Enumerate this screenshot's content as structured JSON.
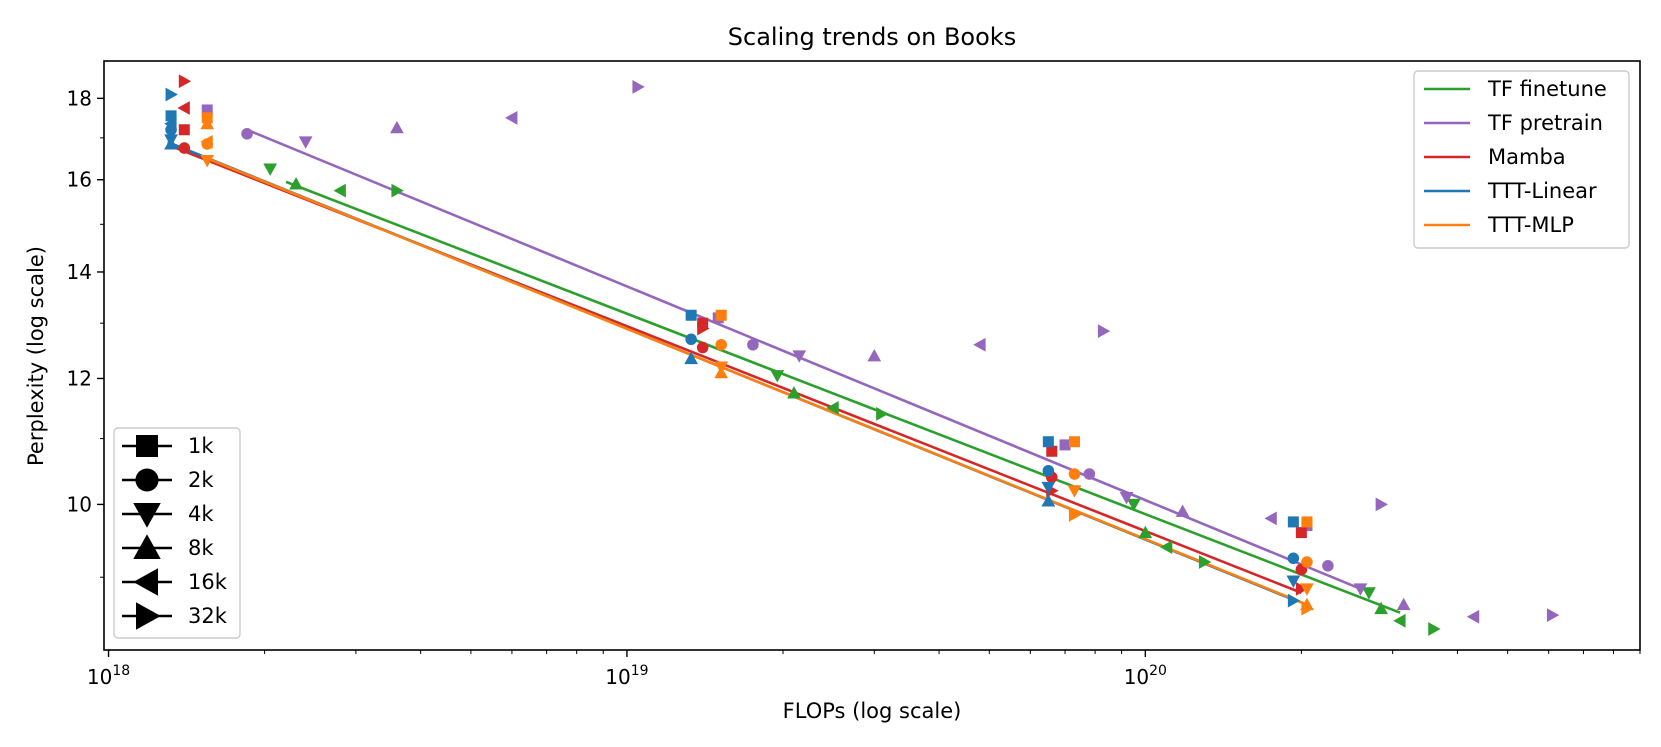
{
  "chart_data": {
    "type": "scatter",
    "title": "Scaling trends on Books",
    "xlabel": "FLOPs (log scale)",
    "ylabel": "Perplexity (log scale)",
    "xscale": "log",
    "yscale": "log",
    "xlim": [
      9.8e+17,
      9e+20
    ],
    "ylim": [
      8.1,
      19.0
    ],
    "x_ticks": [
      {
        "value": 1e+18,
        "base": "10",
        "exp": "18"
      },
      {
        "value": 1e+19,
        "base": "10",
        "exp": "19"
      },
      {
        "value": 1e+20,
        "base": "10",
        "exp": "20"
      }
    ],
    "y_ticks": [
      {
        "value": 10,
        "label": "10"
      },
      {
        "value": 12,
        "label": "12"
      },
      {
        "value": 14,
        "label": "14"
      },
      {
        "value": 16,
        "label": "16"
      },
      {
        "value": 18,
        "label": "18"
      }
    ],
    "grid": false,
    "legend_placement": "top-right",
    "context_legend_placement": "lower-left",
    "context_lengths": [
      {
        "label": "1k",
        "marker": "square"
      },
      {
        "label": "2k",
        "marker": "circle"
      },
      {
        "label": "4k",
        "marker": "triangle-down"
      },
      {
        "label": "8k",
        "marker": "triangle-up"
      },
      {
        "label": "16k",
        "marker": "triangle-left"
      },
      {
        "label": "32k",
        "marker": "triangle-right"
      }
    ],
    "series": [
      {
        "name": "TF finetune",
        "color": "#2ca02c",
        "fit_line": [
          [
            2.2e+18,
            15.95
          ],
          [
            3.1e+20,
            8.55
          ]
        ],
        "points": [
          {
            "x": 2.05e+18,
            "y": 16.25,
            "marker": "triangle-down"
          },
          {
            "x": 2.3e+18,
            "y": 15.9,
            "marker": "triangle-up"
          },
          {
            "x": 2.8e+18,
            "y": 15.75,
            "marker": "triangle-left"
          },
          {
            "x": 3.6e+18,
            "y": 15.75,
            "marker": "triangle-right"
          },
          {
            "x": 1.95e+19,
            "y": 12.05,
            "marker": "triangle-down"
          },
          {
            "x": 2.1e+19,
            "y": 11.75,
            "marker": "triangle-up"
          },
          {
            "x": 2.5e+19,
            "y": 11.5,
            "marker": "triangle-left"
          },
          {
            "x": 3.1e+19,
            "y": 11.4,
            "marker": "triangle-right"
          },
          {
            "x": 9.5e+19,
            "y": 10.0,
            "marker": "triangle-down"
          },
          {
            "x": 1e+20,
            "y": 9.6,
            "marker": "triangle-up"
          },
          {
            "x": 1.1e+20,
            "y": 9.4,
            "marker": "triangle-left"
          },
          {
            "x": 1.3e+20,
            "y": 9.2,
            "marker": "triangle-right"
          },
          {
            "x": 2.7e+20,
            "y": 8.8,
            "marker": "triangle-down"
          },
          {
            "x": 2.85e+20,
            "y": 8.6,
            "marker": "triangle-up"
          },
          {
            "x": 3.1e+20,
            "y": 8.45,
            "marker": "triangle-left"
          },
          {
            "x": 3.6e+20,
            "y": 8.35,
            "marker": "triangle-right"
          }
        ]
      },
      {
        "name": "TF pretrain",
        "color": "#9467bd",
        "fit_line": [
          [
            1.85e+18,
            17.2
          ],
          [
            2.6e+20,
            8.85
          ]
        ],
        "points": [
          {
            "x": 1.55e+18,
            "y": 17.7,
            "marker": "square"
          },
          {
            "x": 1.85e+18,
            "y": 17.1,
            "marker": "circle"
          },
          {
            "x": 2.4e+18,
            "y": 16.9,
            "marker": "triangle-down"
          },
          {
            "x": 3.6e+18,
            "y": 17.25,
            "marker": "triangle-up"
          },
          {
            "x": 6e+18,
            "y": 17.5,
            "marker": "triangle-left"
          },
          {
            "x": 1.05e+19,
            "y": 18.3,
            "marker": "triangle-right"
          },
          {
            "x": 1.5e+19,
            "y": 13.1,
            "marker": "square"
          },
          {
            "x": 1.75e+19,
            "y": 12.6,
            "marker": "circle"
          },
          {
            "x": 2.15e+19,
            "y": 12.4,
            "marker": "triangle-down"
          },
          {
            "x": 3e+19,
            "y": 12.4,
            "marker": "triangle-up"
          },
          {
            "x": 4.8e+19,
            "y": 12.6,
            "marker": "triangle-left"
          },
          {
            "x": 8.3e+19,
            "y": 12.85,
            "marker": "triangle-right"
          },
          {
            "x": 7e+19,
            "y": 10.9,
            "marker": "square"
          },
          {
            "x": 7.8e+19,
            "y": 10.45,
            "marker": "circle"
          },
          {
            "x": 9.2e+19,
            "y": 10.1,
            "marker": "triangle-down"
          },
          {
            "x": 1.18e+20,
            "y": 9.9,
            "marker": "triangle-up"
          },
          {
            "x": 1.75e+20,
            "y": 9.8,
            "marker": "triangle-left"
          },
          {
            "x": 2.85e+20,
            "y": 10.0,
            "marker": "triangle-right"
          },
          {
            "x": 2.05e+20,
            "y": 9.7,
            "marker": "square"
          },
          {
            "x": 2.25e+20,
            "y": 9.15,
            "marker": "circle"
          },
          {
            "x": 2.6e+20,
            "y": 8.85,
            "marker": "triangle-down"
          },
          {
            "x": 3.15e+20,
            "y": 8.65,
            "marker": "triangle-up"
          },
          {
            "x": 4.3e+20,
            "y": 8.5,
            "marker": "triangle-left"
          },
          {
            "x": 6.1e+20,
            "y": 8.52,
            "marker": "triangle-right"
          }
        ]
      },
      {
        "name": "Mamba",
        "color": "#d62728",
        "fit_line": [
          [
            1.35e+18,
            16.75
          ],
          [
            2e+20,
            8.8
          ]
        ],
        "points": [
          {
            "x": 1.4e+18,
            "y": 17.2,
            "marker": "square"
          },
          {
            "x": 1.4e+18,
            "y": 16.75,
            "marker": "circle"
          },
          {
            "x": 1.4e+18,
            "y": 17.75,
            "marker": "triangle-left"
          },
          {
            "x": 1.4e+18,
            "y": 18.45,
            "marker": "triangle-right"
          },
          {
            "x": 1.4e+19,
            "y": 13.0,
            "marker": "square"
          },
          {
            "x": 1.4e+19,
            "y": 12.55,
            "marker": "circle"
          },
          {
            "x": 1.4e+19,
            "y": 12.9,
            "marker": "triangle-right"
          },
          {
            "x": 6.6e+19,
            "y": 10.8,
            "marker": "square"
          },
          {
            "x": 6.6e+19,
            "y": 10.4,
            "marker": "circle"
          },
          {
            "x": 6.6e+19,
            "y": 10.2,
            "marker": "triangle-right"
          },
          {
            "x": 2e+20,
            "y": 9.6,
            "marker": "square"
          },
          {
            "x": 2e+20,
            "y": 9.1,
            "marker": "circle"
          },
          {
            "x": 2e+20,
            "y": 8.85,
            "marker": "triangle-right"
          }
        ]
      },
      {
        "name": "TTT-Linear",
        "color": "#1f77b4",
        "fit_line": [
          [
            1.3e+18,
            16.9
          ],
          [
            1.95e+20,
            8.7
          ]
        ],
        "points": [
          {
            "x": 1.32e+18,
            "y": 17.55,
            "marker": "square"
          },
          {
            "x": 1.32e+18,
            "y": 17.2,
            "marker": "circle"
          },
          {
            "x": 1.32e+18,
            "y": 16.95,
            "marker": "triangle-down"
          },
          {
            "x": 1.32e+18,
            "y": 16.85,
            "marker": "triangle-up"
          },
          {
            "x": 1.32e+18,
            "y": 17.35,
            "marker": "triangle-left"
          },
          {
            "x": 1.32e+18,
            "y": 18.1,
            "marker": "triangle-right"
          },
          {
            "x": 1.33e+19,
            "y": 13.15,
            "marker": "square"
          },
          {
            "x": 1.33e+19,
            "y": 12.7,
            "marker": "circle"
          },
          {
            "x": 1.33e+19,
            "y": 12.35,
            "marker": "triangle-up"
          },
          {
            "x": 6.5e+19,
            "y": 10.95,
            "marker": "square"
          },
          {
            "x": 6.5e+19,
            "y": 10.5,
            "marker": "circle"
          },
          {
            "x": 6.5e+19,
            "y": 10.25,
            "marker": "triangle-down"
          },
          {
            "x": 6.5e+19,
            "y": 10.05,
            "marker": "triangle-up"
          },
          {
            "x": 1.93e+20,
            "y": 9.75,
            "marker": "square"
          },
          {
            "x": 1.93e+20,
            "y": 9.25,
            "marker": "circle"
          },
          {
            "x": 1.93e+20,
            "y": 8.95,
            "marker": "triangle-down"
          },
          {
            "x": 1.93e+20,
            "y": 8.7,
            "marker": "triangle-right"
          }
        ]
      },
      {
        "name": "TTT-MLP",
        "color": "#ff7f0e",
        "fit_line": [
          [
            1.55e+18,
            16.5
          ],
          [
            2.05e+20,
            8.65
          ]
        ],
        "points": [
          {
            "x": 1.55e+18,
            "y": 17.5,
            "marker": "square"
          },
          {
            "x": 1.55e+18,
            "y": 16.85,
            "marker": "circle"
          },
          {
            "x": 1.55e+18,
            "y": 16.45,
            "marker": "triangle-down"
          },
          {
            "x": 1.55e+18,
            "y": 17.35,
            "marker": "triangle-up"
          },
          {
            "x": 1.55e+18,
            "y": 16.9,
            "marker": "triangle-left"
          },
          {
            "x": 1.52e+19,
            "y": 13.15,
            "marker": "square"
          },
          {
            "x": 1.52e+19,
            "y": 12.6,
            "marker": "circle"
          },
          {
            "x": 1.52e+19,
            "y": 12.2,
            "marker": "triangle-down"
          },
          {
            "x": 1.52e+19,
            "y": 12.1,
            "marker": "triangle-up"
          },
          {
            "x": 7.3e+19,
            "y": 10.95,
            "marker": "square"
          },
          {
            "x": 7.3e+19,
            "y": 10.45,
            "marker": "circle"
          },
          {
            "x": 7.3e+19,
            "y": 10.2,
            "marker": "triangle-down"
          },
          {
            "x": 7.3e+19,
            "y": 9.85,
            "marker": "triangle-right"
          },
          {
            "x": 2.05e+20,
            "y": 9.75,
            "marker": "square"
          },
          {
            "x": 2.05e+20,
            "y": 9.2,
            "marker": "circle"
          },
          {
            "x": 2.05e+20,
            "y": 8.85,
            "marker": "triangle-down"
          },
          {
            "x": 2.05e+20,
            "y": 8.65,
            "marker": "triangle-up"
          },
          {
            "x": 2.05e+20,
            "y": 8.6,
            "marker": "triangle-right"
          }
        ]
      }
    ]
  }
}
